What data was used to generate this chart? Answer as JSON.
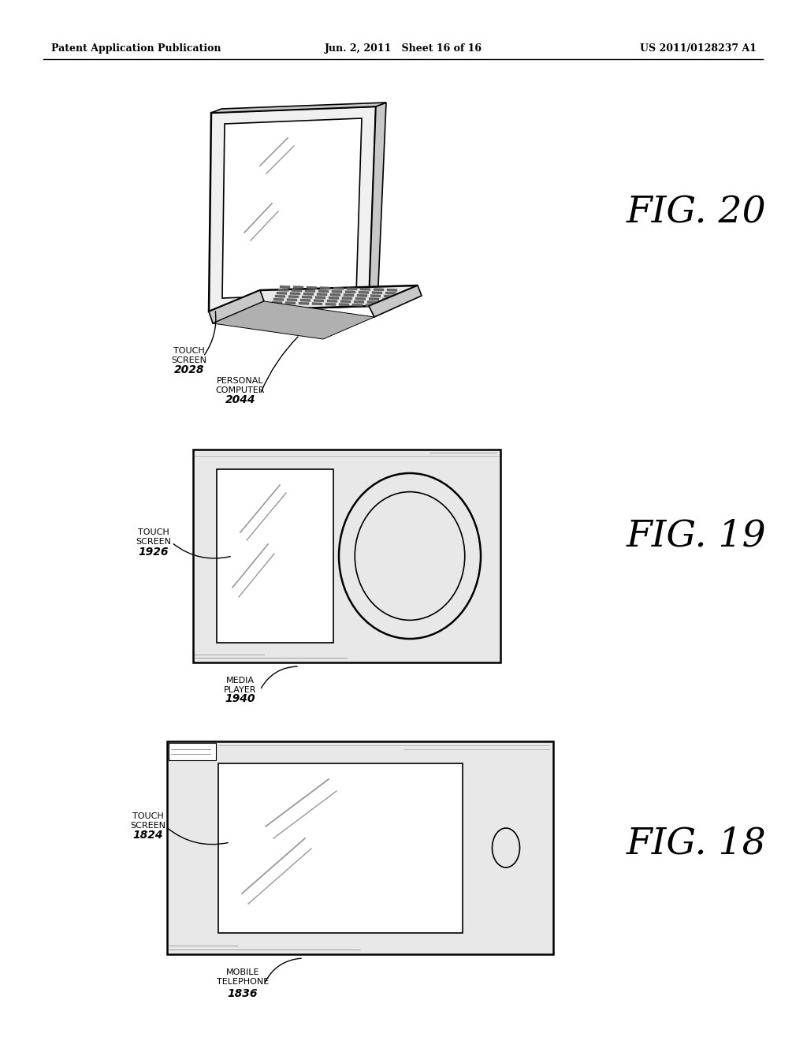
{
  "bg_color": "#ffffff",
  "header_left": "Patent Application Publication",
  "header_mid": "Jun. 2, 2011   Sheet 16 of 16",
  "header_right": "US 2011/0128237 A1",
  "fig20_label": "FIG. 20",
  "fig19_label": "FIG. 19",
  "fig18_label": "FIG. 18",
  "lw_thick": 1.8,
  "lw_med": 1.2,
  "lw_thin": 0.7,
  "screen_color": "#f0f0f0",
  "body_color": "#e8e8e8",
  "deep_color": "#c8c8c8",
  "kbd_color": "#666666",
  "white": "#ffffff",
  "black": "#000000",
  "line_color": "#999999"
}
